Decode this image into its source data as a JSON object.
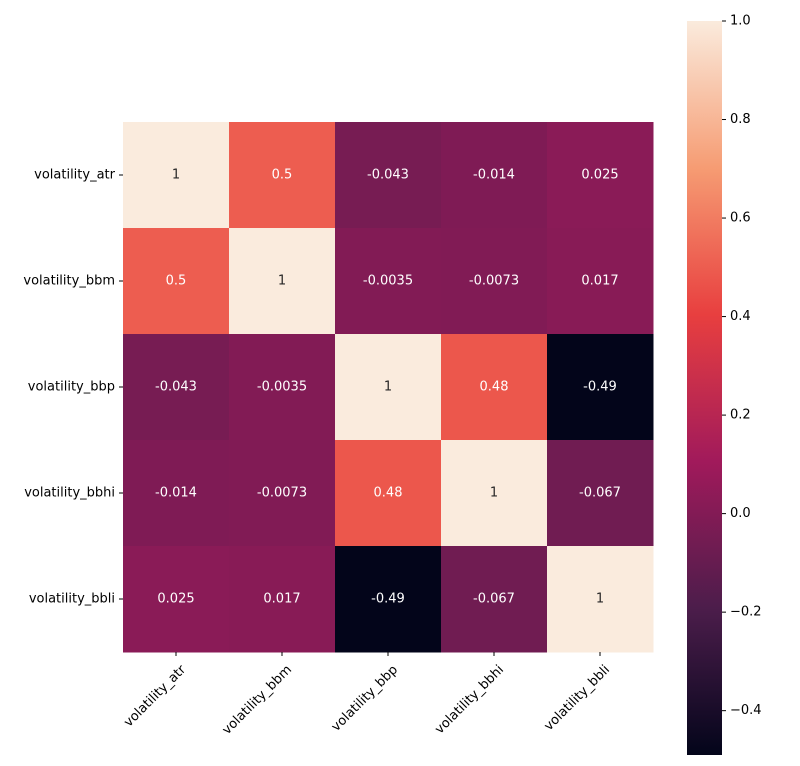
{
  "chart_data": {
    "type": "heatmap",
    "title": "",
    "xlabel": "",
    "ylabel": "",
    "row_labels": [
      "volatility_atr",
      "volatility_bbm",
      "volatility_bbp",
      "volatility_bbhi",
      "volatility_bbli"
    ],
    "col_labels": [
      "volatility_atr",
      "volatility_bbm",
      "volatility_bbp",
      "volatility_bbhi",
      "volatility_bbli"
    ],
    "values": [
      [
        1,
        0.5,
        -0.043,
        -0.014,
        0.025
      ],
      [
        0.5,
        1,
        -0.0035,
        -0.0073,
        0.017
      ],
      [
        -0.043,
        -0.0035,
        1,
        0.48,
        -0.49
      ],
      [
        -0.014,
        -0.0073,
        0.48,
        1,
        -0.067
      ],
      [
        0.025,
        0.017,
        -0.49,
        -0.067,
        1
      ]
    ],
    "annotations": [
      [
        "1",
        "0.5",
        "-0.043",
        "-0.014",
        "0.025"
      ],
      [
        "0.5",
        "1",
        "-0.0035",
        "-0.0073",
        "0.017"
      ],
      [
        "-0.043",
        "-0.0035",
        "1",
        "0.48",
        "-0.49"
      ],
      [
        "-0.014",
        "-0.0073",
        "0.48",
        "1",
        "-0.067"
      ],
      [
        "0.025",
        "0.017",
        "-0.49",
        "-0.067",
        "1"
      ]
    ],
    "colorbar": {
      "vmin": -0.49,
      "vmax": 1,
      "ticks": [
        -0.4,
        -0.2,
        0.0,
        0.2,
        0.4,
        0.6,
        0.8,
        1.0
      ],
      "tick_labels": [
        "−0.4",
        "−0.2",
        "0.0",
        "0.2",
        "0.4",
        "0.6",
        "0.8",
        "1.0"
      ],
      "colormap": "rocket",
      "stops": [
        "#03051a",
        "#4c1d4b",
        "#a11a5b",
        "#e83f3f",
        "#f69c73",
        "#faebdd"
      ]
    },
    "grid": false,
    "x_tick_rotation_deg": 45
  }
}
